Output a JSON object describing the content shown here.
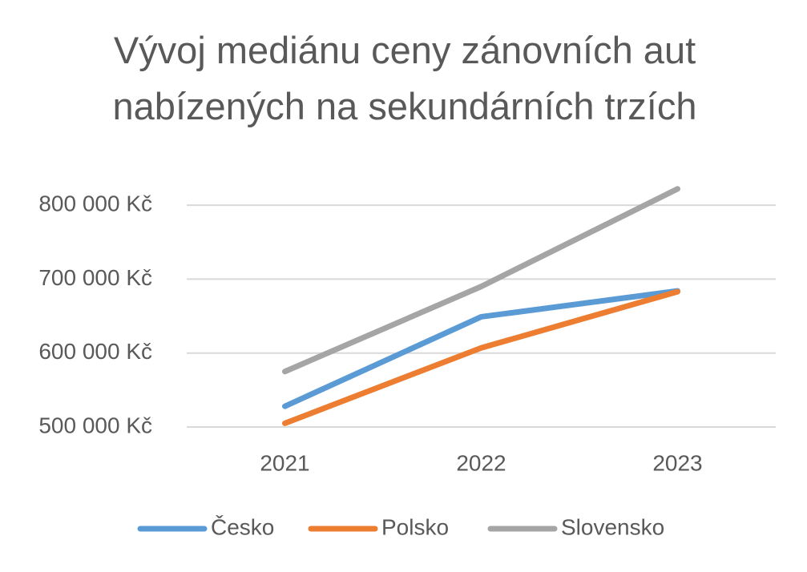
{
  "chart_data": {
    "type": "line",
    "title": "Vývoj mediánu ceny zánovních aut nabízených na sekundárních trzích",
    "categories": [
      "2021",
      "2022",
      "2023"
    ],
    "series": [
      {
        "name": "Česko",
        "color": "#5b9bd5",
        "values": [
          528000,
          649000,
          684000
        ]
      },
      {
        "name": "Polsko",
        "color": "#ed7d31",
        "values": [
          505000,
          607000,
          683000
        ]
      },
      {
        "name": "Slovensko",
        "color": "#a5a5a5",
        "values": [
          575000,
          690000,
          822000
        ]
      }
    ],
    "ylim": [
      500000,
      825000
    ],
    "yticks": [
      {
        "value": 500000,
        "label": "500 000 Kč"
      },
      {
        "value": 600000,
        "label": "600 000 Kč"
      },
      {
        "value": 700000,
        "label": "700 000 Kč"
      },
      {
        "value": 800000,
        "label": "800 000 Kč"
      }
    ],
    "grid": true,
    "legend": "bottom"
  }
}
